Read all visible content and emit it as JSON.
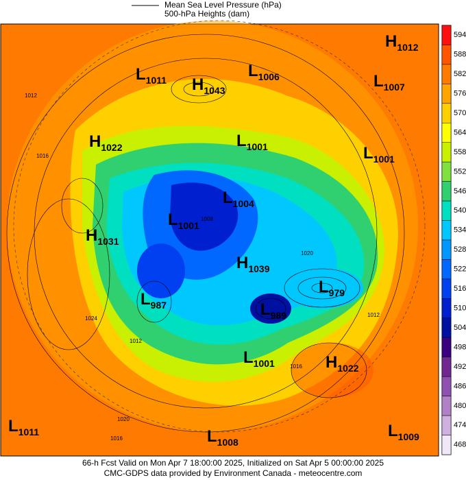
{
  "legend": {
    "lines": [
      "Mean Sea Level Pressure (hPa)",
      "500-hPa Heights (dam)"
    ]
  },
  "centers": [
    {
      "type": "H",
      "value": 1012
    },
    {
      "type": "L",
      "value": 1011
    },
    {
      "type": "H",
      "value": 1043
    },
    {
      "type": "L",
      "value": 1006
    },
    {
      "type": "L",
      "value": 1007
    },
    {
      "type": "H",
      "value": 1022
    },
    {
      "type": "L",
      "value": 1001
    },
    {
      "type": "L",
      "value": 1001
    },
    {
      "type": "L",
      "value": 1004
    },
    {
      "type": "L",
      "value": 1001
    },
    {
      "type": "H",
      "value": 1031
    },
    {
      "type": "H",
      "value": 1039
    },
    {
      "type": "L",
      "value": 979
    },
    {
      "type": "L",
      "value": 987
    },
    {
      "type": "L",
      "value": 989
    },
    {
      "type": "L",
      "value": 1001
    },
    {
      "type": "H",
      "value": 1022
    },
    {
      "type": "L",
      "value": 1011
    },
    {
      "type": "L",
      "value": 1008
    },
    {
      "type": "L",
      "value": 1009
    }
  ],
  "isobar_labels": [
    1012,
    1016,
    1020,
    1016,
    1012,
    1008,
    1024,
    1020,
    1012,
    1016
  ],
  "colorbar": {
    "ticks": [
      594,
      588,
      582,
      576,
      570,
      564,
      558,
      552,
      546,
      540,
      534,
      528,
      522,
      516,
      510,
      504,
      498,
      492,
      486,
      480,
      474,
      468
    ],
    "colors": [
      "#ff1010",
      "#ff5500",
      "#ff7a00",
      "#ffa500",
      "#ffd000",
      "#ffff00",
      "#c8f000",
      "#80e040",
      "#30d070",
      "#00e0c0",
      "#00c8ff",
      "#0098ff",
      "#0068ff",
      "#0040f0",
      "#0020d0",
      "#0010a0",
      "#3a0080",
      "#702890",
      "#9050b0",
      "#b080c8",
      "#d0b0e0",
      "#f0e8f8"
    ]
  },
  "footer": {
    "lines": [
      "66-h Fcst Valid on Mon Apr  7 18:00:00 2025, Initialized on Sat Apr  5 00:00:00 2025",
      "CMC-GDPS data provided by Environment Canada - meteocentre.com"
    ]
  }
}
